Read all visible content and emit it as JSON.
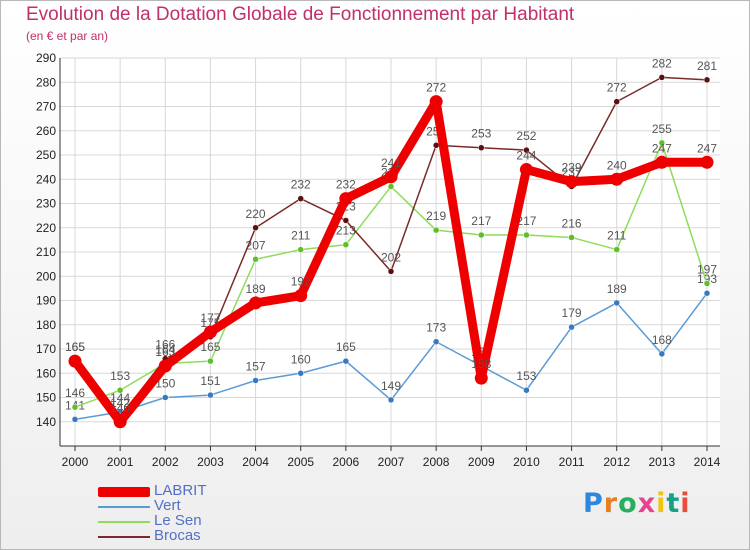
{
  "chart_data": {
    "type": "line",
    "title": "Evolution de la Dotation Globale de Fonctionnement par Habitant",
    "subtitle": "(en € et par an)",
    "x": [
      "2000",
      "2001",
      "2002",
      "2003",
      "2004",
      "2005",
      "2006",
      "2007",
      "2008",
      "2009",
      "2010",
      "2011",
      "2012",
      "2013",
      "2014"
    ],
    "ylim": [
      130,
      290
    ],
    "yticks": [
      140,
      150,
      160,
      170,
      180,
      190,
      200,
      210,
      220,
      230,
      240,
      250,
      260,
      270,
      280,
      290
    ],
    "grid": true,
    "legend_position": "bottom-left",
    "series": [
      {
        "name": "Vert",
        "color": "#5b9bd5",
        "dot": "#3a78c0",
        "values": [
          141,
          144,
          150,
          151,
          157,
          160,
          165,
          149,
          173,
          163,
          153,
          179,
          189,
          168,
          193
        ]
      },
      {
        "name": "Le Sen",
        "color": "#8fdc5a",
        "dot": "#5fbf2a",
        "values": [
          146,
          153,
          164,
          165,
          207,
          211,
          213,
          237,
          219,
          217,
          217,
          216,
          211,
          255,
          197
        ]
      },
      {
        "name": "Brocas",
        "color": "#7a2a2a",
        "dot": "#5a1010",
        "values": [
          165,
          142,
          166,
          175,
          220,
          232,
          223,
          202,
          254,
          253,
          252,
          237,
          272,
          282,
          281
        ]
      },
      {
        "name": "LABRIT",
        "color": "#ee0000",
        "dot": "#ee0000",
        "values": [
          165,
          140,
          163,
          177,
          189,
          192,
          232,
          241,
          272,
          158,
          244,
          239,
          240,
          247,
          247
        ]
      }
    ],
    "legend": [
      "LABRIT",
      "Vert",
      "Le Sen",
      "Brocas"
    ]
  },
  "logo": {
    "letters": [
      "P",
      "r",
      "o",
      "x",
      "i",
      "t",
      "i"
    ],
    "colors": [
      "#2e86de",
      "#e67e22",
      "#27ae60",
      "#e84393",
      "#f1c40f",
      "#16a085",
      "#e74c3c"
    ]
  }
}
